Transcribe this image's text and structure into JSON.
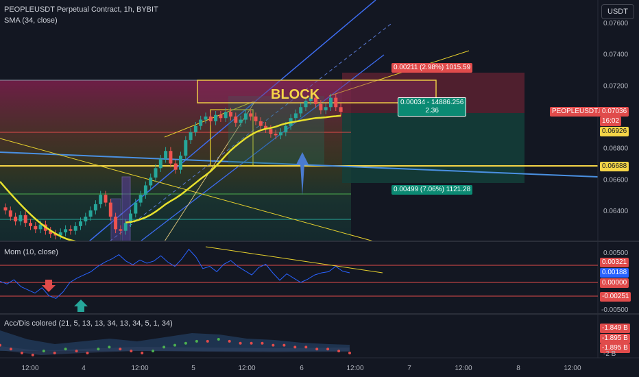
{
  "header": {
    "title": "PEOPLEUSDT Perpetual Contract, 1h, BYBIT",
    "indicator": "SMA (34, close)",
    "currency": "USDT"
  },
  "price_axis": {
    "ticks": [
      "0.07600",
      "0.07400",
      "0.07200",
      "0.06800",
      "0.06600",
      "0.06400"
    ]
  },
  "tags": {
    "symbol": "PEOPLEUSDT.P",
    "last": "0.07036",
    "countdown": "16:02",
    "sma": "0.06926",
    "level": "0.06688"
  },
  "annotations": {
    "block": "BLOCK",
    "target": "0.00211 (2.98%) 1015.59",
    "mid_line1": "0.00034 - 14886.256",
    "mid_line2": "2.36",
    "stop": "0.00499 (7.06%) 1121.28"
  },
  "mom": {
    "title": "Mom (10, close)",
    "ticks": [
      "0.00500",
      "-0.00500"
    ],
    "tags": [
      "0.00321",
      "0.00188",
      "0.00000",
      "-0.00251"
    ]
  },
  "acc": {
    "title": "Acc/Dis colored (21, 5, 13, 13, 34, 13, 34, 5, 1, 34)",
    "ticks": [
      "-2 B"
    ],
    "tags": [
      "-1.849 B",
      "-1.895 B",
      "-1.895 B"
    ]
  },
  "time_axis": {
    "labels": [
      "12:00",
      "4",
      "12:00",
      "5",
      "12:00",
      "6",
      "12:00",
      "7",
      "12:00",
      "8",
      "12:00"
    ]
  },
  "chart_data": {
    "type": "candlestick",
    "symbol": "PEOPLEUSDT",
    "interval": "1h",
    "title": "PEOPLEUSDT Perpetual Contract, 1h, BYBIT",
    "x_ticks": [
      "12:00",
      "4",
      "12:00",
      "5",
      "12:00",
      "6",
      "12:00",
      "7",
      "12:00",
      "8",
      "12:00"
    ],
    "y_ticks": [
      0.076,
      0.074,
      0.072,
      0.068,
      0.066,
      0.064
    ],
    "ylim": [
      0.0625,
      0.0775
    ],
    "candles_close": [
      0.064,
      0.0636,
      0.0633,
      0.0637,
      0.0632,
      0.063,
      0.0628,
      0.0631,
      0.0627,
      0.0625,
      0.0624,
      0.0626,
      0.0628,
      0.0627,
      0.063,
      0.0633,
      0.0636,
      0.064,
      0.0644,
      0.065,
      0.0645,
      0.0636,
      0.0628,
      0.0627,
      0.0632,
      0.0638,
      0.0645,
      0.065,
      0.0656,
      0.0661,
      0.0667,
      0.0673,
      0.0678,
      0.067,
      0.0666,
      0.0675,
      0.0685,
      0.069,
      0.0694,
      0.0698,
      0.07,
      0.0697,
      0.0701,
      0.0699,
      0.0703,
      0.07,
      0.0696,
      0.0698,
      0.0702,
      0.07,
      0.0697,
      0.0694,
      0.0692,
      0.0689,
      0.0688,
      0.069,
      0.0694,
      0.0699,
      0.0702,
      0.0706,
      0.071,
      0.0712,
      0.0708,
      0.0704,
      0.0706,
      0.0712,
      0.0706,
      0.0703
    ],
    "sma_34_close_end": 0.06926,
    "last_price": 0.07036,
    "horizontal_levels": [
      0.06688
    ],
    "momentum": {
      "name": "Mom (10, close)",
      "values": [
        0.0002,
        -0.0003,
        0.0005,
        -0.0008,
        -0.0014,
        -0.002,
        -0.001,
        -0.0025,
        -0.003,
        -0.0018,
        0.0,
        0.0008,
        0.0014,
        0.002,
        0.003,
        0.0038,
        0.0044,
        0.0052,
        0.004,
        0.0033,
        0.0042,
        0.0036,
        0.004,
        0.005,
        0.0038,
        0.003,
        0.0044,
        0.0062,
        0.0048,
        0.0026,
        0.003,
        0.002,
        0.0034,
        0.0041,
        0.003,
        0.0022,
        0.0014,
        0.0028,
        0.0034,
        0.0018,
        0.0004,
        0.0016,
        0.0008,
        0.0,
        0.0006,
        0.0014,
        0.0018,
        0.002,
        0.003,
        0.0021,
        0.0018
      ],
      "last": 0.00188,
      "levels": [
        0.00321,
        0.0,
        -0.00251
      ]
    },
    "acc_dis": {
      "name": "Acc/Dis colored (21, 5, 13, 13, 34, 13, 34, 5, 1, 34)",
      "unit": "B",
      "values": [
        -1.88,
        -1.9,
        -1.92,
        -1.93,
        -1.91,
        -1.92,
        -1.9,
        -1.91,
        -1.92,
        -1.9,
        -1.89,
        -1.9,
        -1.91,
        -1.92,
        -1.91,
        -1.89,
        -1.88,
        -1.87,
        -1.86,
        -1.86,
        -1.85,
        -1.86,
        -1.87,
        -1.87,
        -1.87,
        -1.88,
        -1.88,
        -1.89,
        -1.89,
        -1.9,
        -1.9,
        -1.91,
        -1.92
      ],
      "last": [
        -1.849,
        -1.895,
        -1.895
      ]
    },
    "colors": {
      "up": "#26a69a",
      "down": "#ef5350",
      "sma": "#e7e12d",
      "mom": "#2962ff"
    }
  }
}
